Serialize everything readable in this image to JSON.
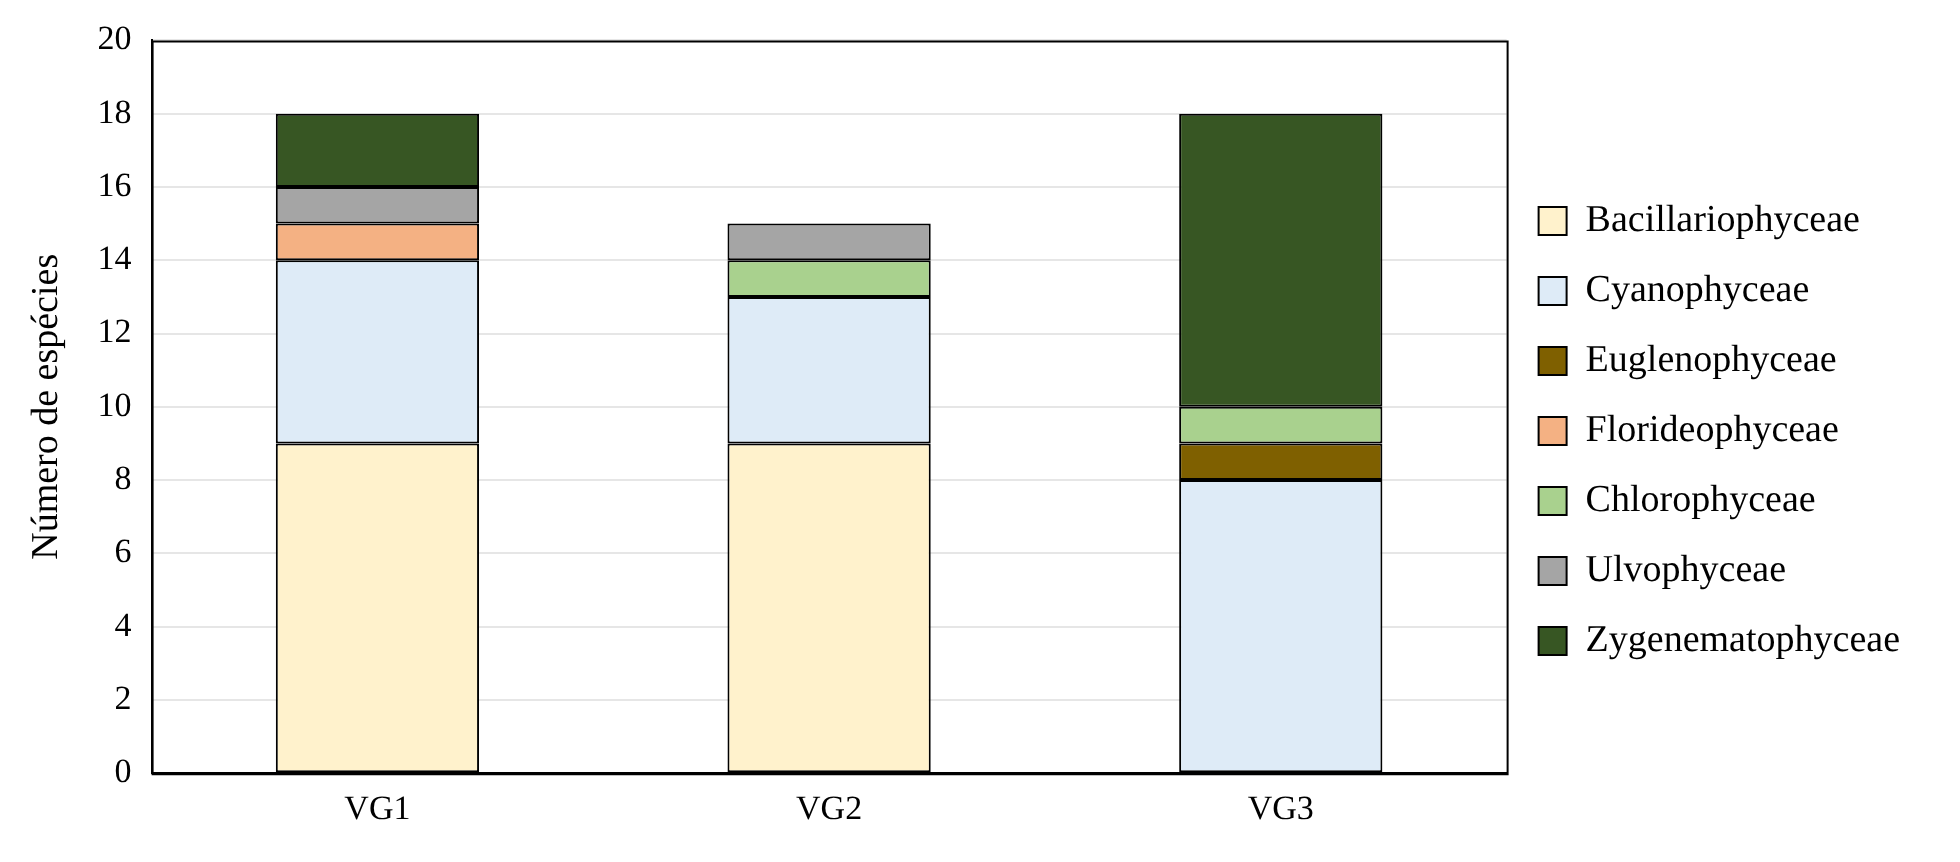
{
  "chart_data": {
    "type": "bar",
    "stacked": true,
    "ylabel": "Número de espécies",
    "categories": [
      "VG1",
      "VG2",
      "VG3"
    ],
    "series": [
      {
        "name": "Bacillariophyceae",
        "color": "#fff2cc",
        "values": [
          9,
          9,
          0
        ]
      },
      {
        "name": "Cyanophyceae",
        "color": "#deebf7",
        "values": [
          5,
          4,
          8
        ]
      },
      {
        "name": "Euglenophyceae",
        "color": "#7f6000",
        "values": [
          0,
          0,
          1
        ]
      },
      {
        "name": "Florideophyceae",
        "color": "#f4b183",
        "values": [
          1,
          0,
          0
        ]
      },
      {
        "name": "Chlorophyceae",
        "color": "#a9d18e",
        "values": [
          0,
          1,
          1
        ]
      },
      {
        "name": "Ulvophyceae",
        "color": "#a5a5a5",
        "values": [
          1,
          1,
          0
        ]
      },
      {
        "name": "Zygenematophyceae",
        "color": "#375623",
        "values": [
          2,
          0,
          8
        ]
      }
    ],
    "ylim": [
      0,
      20
    ],
    "yticks": [
      0,
      2,
      4,
      6,
      8,
      10,
      12,
      14,
      16,
      18,
      20
    ],
    "grid": "y",
    "legend": "right"
  }
}
